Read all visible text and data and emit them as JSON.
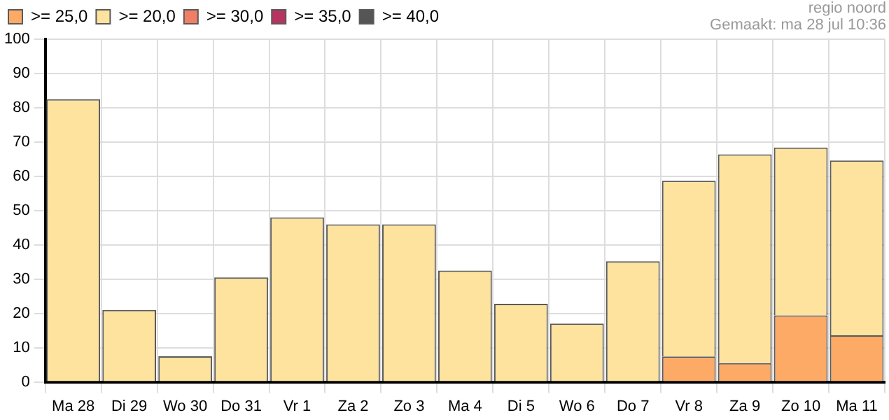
{
  "chart_data": {
    "type": "bar",
    "stacked": true,
    "categories": [
      "Ma 28",
      "Di 29",
      "Wo 30",
      "Do 31",
      "Vr 1",
      "Za 2",
      "Zo 3",
      "Ma 4",
      "Di 5",
      "Wo 6",
      "Do 7",
      "Vr 8",
      "Za 9",
      "Zo 10",
      "Ma 11"
    ],
    "series": [
      {
        "name": ">= 25,0",
        "color": "#fcaa66",
        "values": [
          0,
          0,
          0,
          0,
          0,
          0,
          0,
          0,
          0,
          0,
          0,
          7.4,
          5.5,
          19.4,
          13.6
        ]
      },
      {
        "name": ">= 20,0",
        "color": "#fde39e",
        "values": [
          82.5,
          21,
          7.5,
          30.5,
          48,
          46,
          46,
          32.5,
          22.8,
          17,
          35.2,
          51.3,
          60.9,
          49,
          51
        ]
      },
      {
        "name": ">= 30,0",
        "color": "#f07f66",
        "values": [
          0,
          0,
          0,
          0,
          0,
          0,
          0,
          0,
          0,
          0,
          0,
          0,
          0,
          0,
          0
        ]
      },
      {
        "name": ">= 35,0",
        "color": "#b83460",
        "values": [
          0,
          0,
          0,
          0,
          0,
          0,
          0,
          0,
          0,
          0,
          0,
          0,
          0,
          0,
          0
        ]
      },
      {
        "name": ">= 40,0",
        "color": "#555555",
        "values": [
          0,
          0,
          0,
          0,
          0,
          0,
          0,
          0,
          0,
          0,
          0,
          0,
          0,
          0,
          0
        ]
      }
    ],
    "ylim": [
      0,
      100
    ],
    "yticks": [
      0,
      10,
      20,
      30,
      40,
      50,
      60,
      70,
      80,
      90,
      100
    ],
    "grid": true,
    "legend": "top left",
    "annotations": [
      "regio noord",
      "Gemaakt: ma 28 jul 10:36"
    ]
  }
}
